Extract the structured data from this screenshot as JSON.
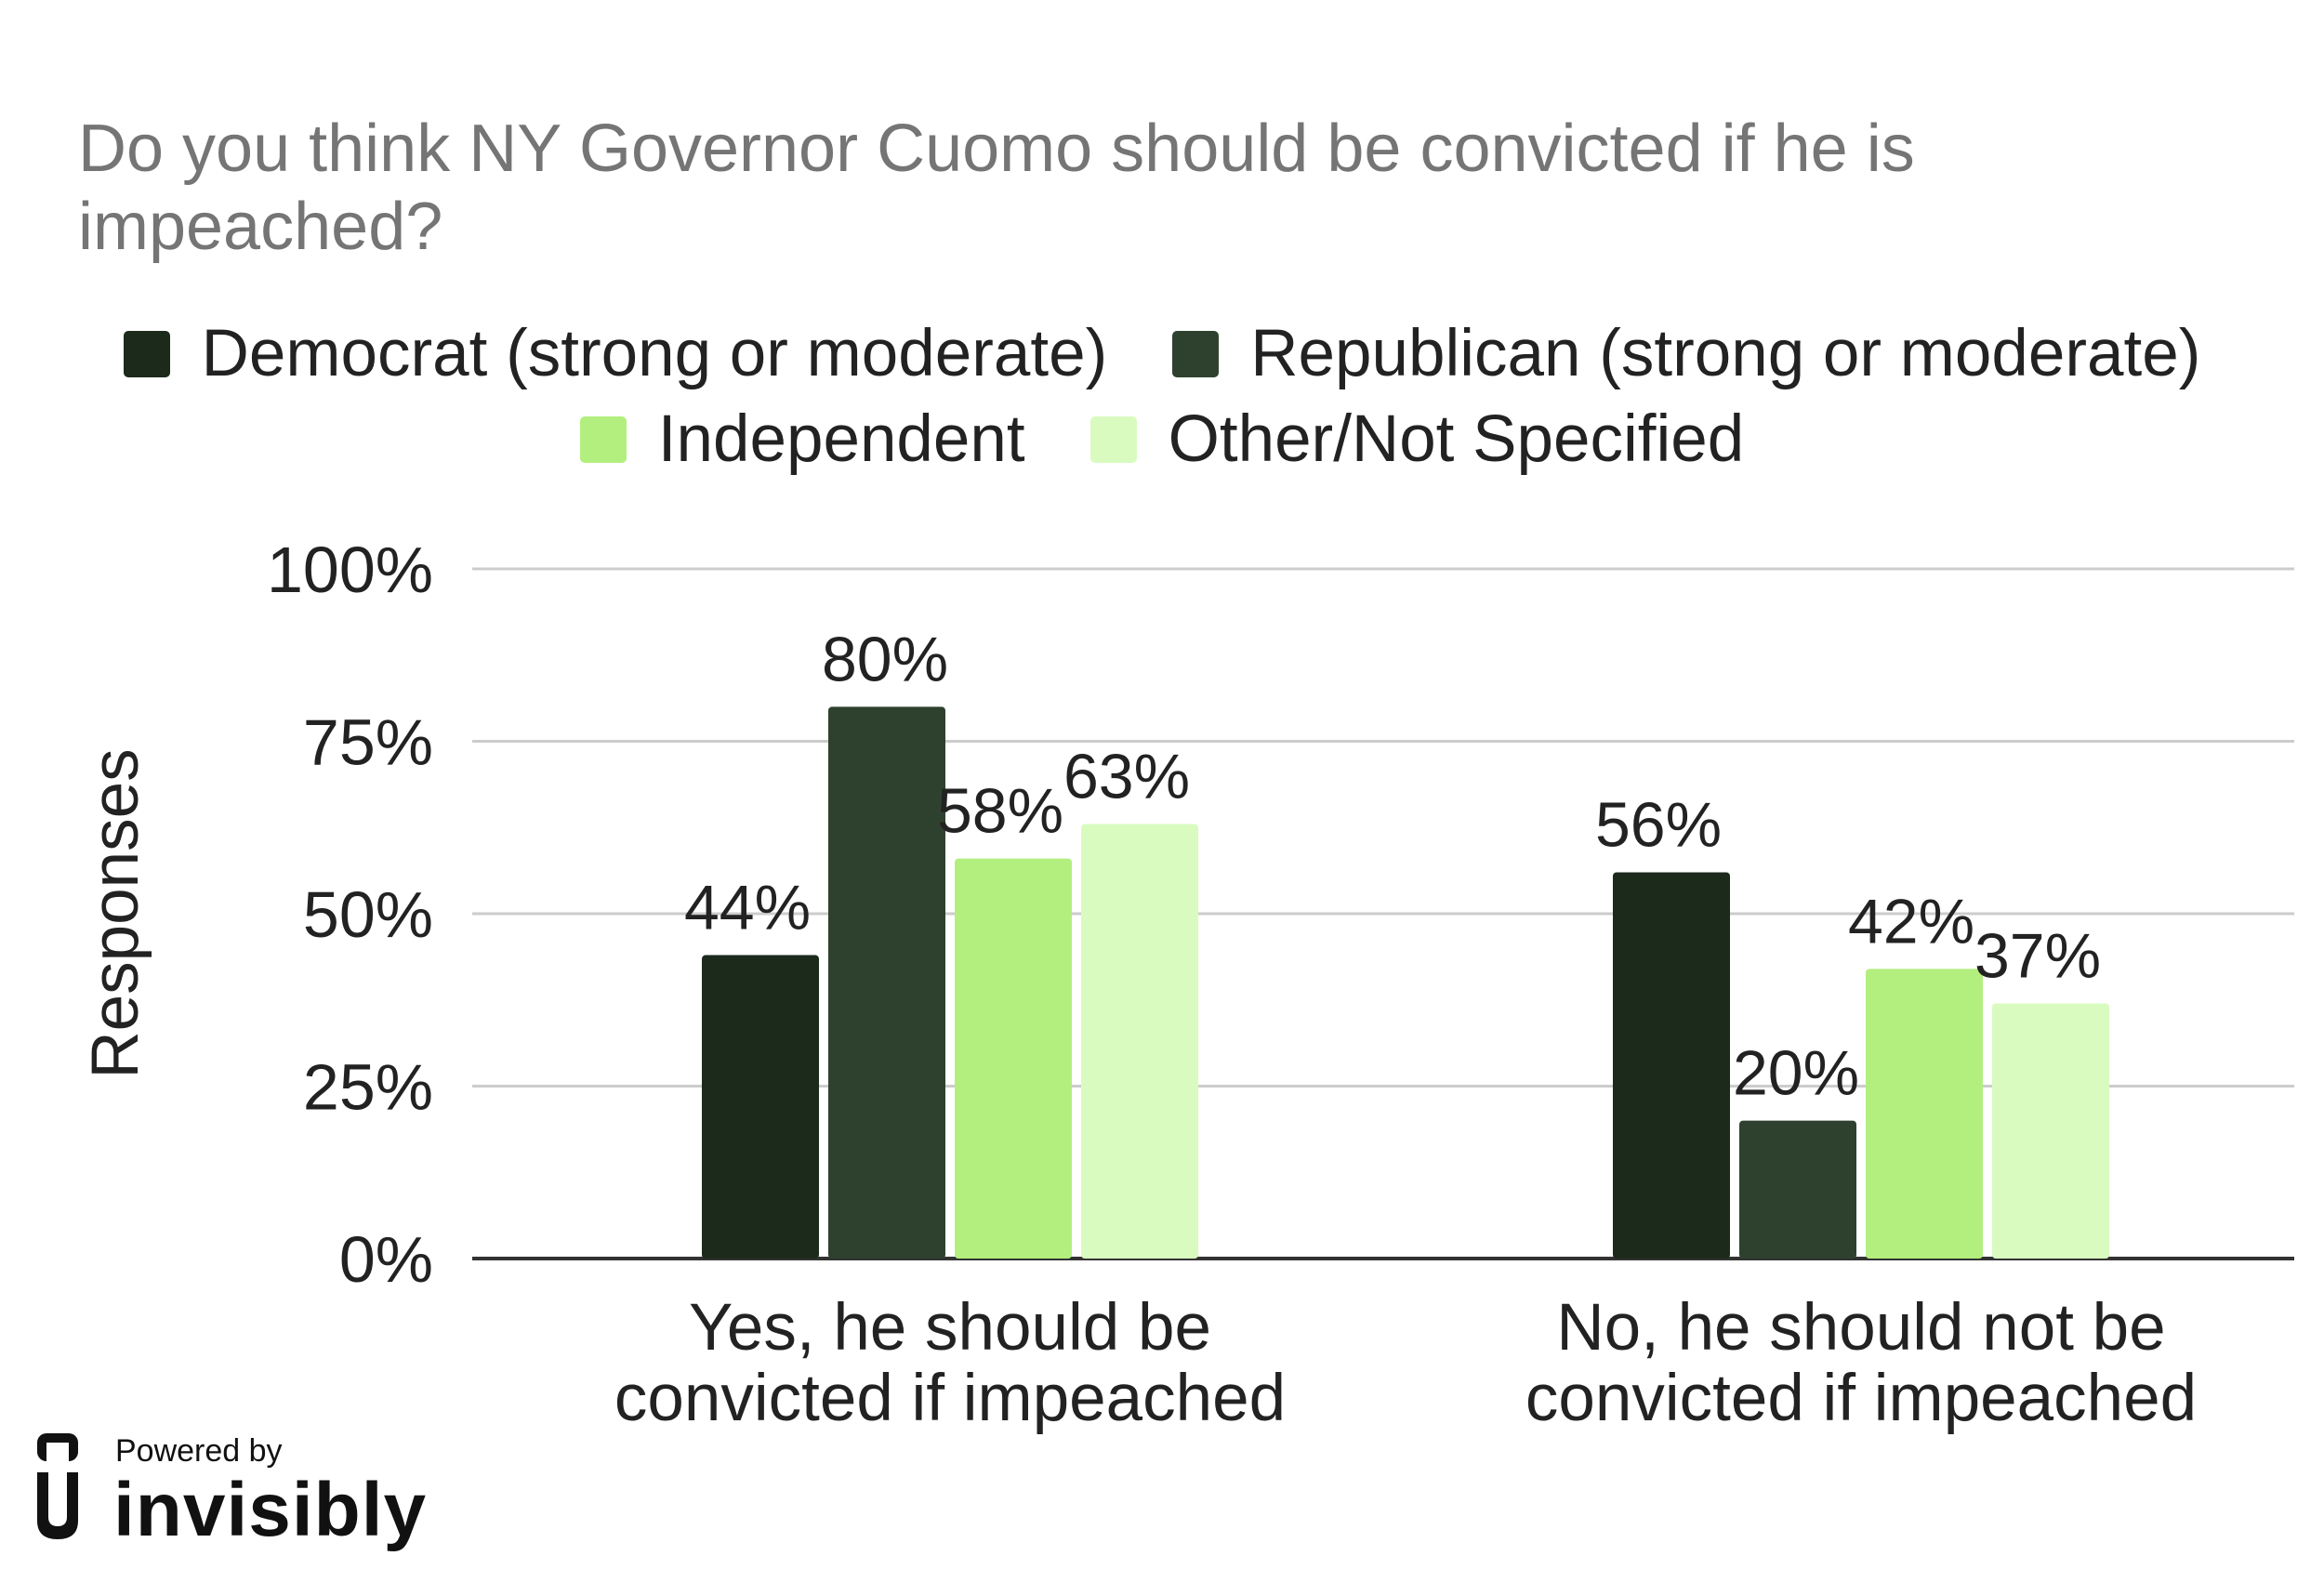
{
  "colors": {
    "democrat": "#1c2a1c",
    "republican": "#2e412e",
    "independent": "#b3ef7f",
    "other": "#d9fbc0",
    "grid": "#cccccc",
    "axis": "#333333",
    "text": "#222222",
    "title": "#757575"
  },
  "brand": {
    "powered_by": "Powered by",
    "name": "invisibly",
    "icon": "invisibly-logo-icon"
  },
  "chart_data": {
    "type": "bar",
    "title": "Do you think NY Governor Cuomo should be convicted if he is impeached?",
    "xlabel": "",
    "ylabel": "Responses",
    "ylim": [
      0,
      100
    ],
    "yticks": [
      "0%",
      "25%",
      "50%",
      "75%",
      "100%"
    ],
    "grid": true,
    "legend_position": "top",
    "categories": [
      [
        "Yes, he should be",
        "convicted if impeached"
      ],
      [
        "No, he should not be",
        "convicted if impeached"
      ]
    ],
    "series": [
      {
        "name": "Democrat (strong or moderate)",
        "values": [
          44,
          56
        ],
        "labels": [
          "44%",
          "56%"
        ],
        "color": "#1c2a1c"
      },
      {
        "name": "Republican (strong or moderate)",
        "values": [
          80,
          20
        ],
        "labels": [
          "80%",
          "20%"
        ],
        "color": "#2e412e"
      },
      {
        "name": "Independent",
        "values": [
          58,
          42
        ],
        "labels": [
          "58%",
          "42%"
        ],
        "color": "#b3ef7f"
      },
      {
        "name": "Other/Not Specified",
        "values": [
          63,
          37
        ],
        "labels": [
          "63%",
          "37%"
        ],
        "color": "#d9fbc0"
      }
    ]
  }
}
